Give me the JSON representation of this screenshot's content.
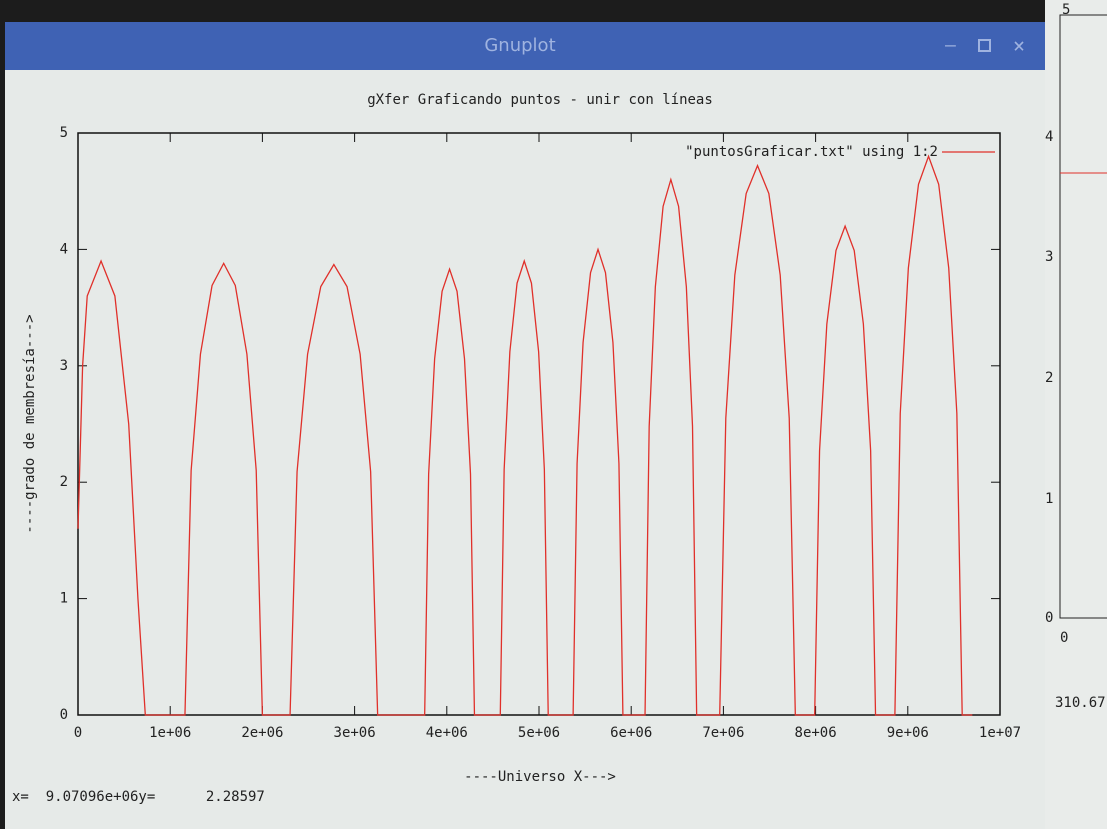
{
  "window": {
    "title": "Gnuplot"
  },
  "chart_data": {
    "type": "line",
    "title": "gXfer Graficando puntos - unir con líneas",
    "xlabel": "----Universo X--->",
    "ylabel": "----grado de membresía--->",
    "x": [
      0,
      50000,
      100000,
      250000,
      400000,
      550000,
      650000,
      730000,
      1160000,
      1227000,
      1328000,
      1454000,
      1580000,
      1706000,
      1832000,
      1933000,
      2000000,
      2300000,
      2376000,
      2490000,
      2633000,
      2775000,
      2918000,
      3060000,
      3174000,
      3250000,
      3760000,
      3803000,
      3868000,
      3949000,
      4030000,
      4111000,
      4192000,
      4257000,
      4300000,
      4580000,
      4622000,
      4684000,
      4762000,
      4840000,
      4918000,
      4996000,
      5058000,
      5100000,
      5370000,
      5413000,
      5478000,
      5559000,
      5640000,
      5721000,
      5802000,
      5867000,
      5910000,
      6150000,
      6195000,
      6262000,
      6346000,
      6430000,
      6514000,
      6598000,
      6665000,
      6710000,
      6960000,
      7026000,
      7124000,
      7247000,
      7370000,
      7493000,
      7616000,
      7714000,
      7780000,
      7990000,
      8043000,
      8122000,
      8221000,
      8320000,
      8419000,
      8518000,
      8597000,
      8650000,
      8860000,
      8918000,
      9006000,
      9116000,
      9225000,
      9335000,
      9444000,
      9532000,
      9590000,
      9700000
    ],
    "series": [
      {
        "name": "\"puntosGraficar.txt\" using 1:2",
        "color": "#e0302a",
        "values": [
          1.6,
          3.0,
          3.6,
          3.9,
          3.6,
          2.5,
          1.0,
          0,
          0,
          2.1,
          3.1,
          3.69,
          3.88,
          3.69,
          3.1,
          2.1,
          0,
          0,
          2.09,
          3.1,
          3.68,
          3.87,
          3.68,
          3.1,
          2.09,
          0,
          0,
          2.07,
          3.06,
          3.64,
          3.83,
          3.64,
          3.06,
          2.07,
          0,
          0,
          2.11,
          3.12,
          3.71,
          3.9,
          3.71,
          3.12,
          2.11,
          0,
          0,
          2.16,
          3.2,
          3.8,
          4.0,
          3.8,
          3.2,
          2.16,
          0,
          0,
          2.48,
          3.68,
          4.37,
          4.6,
          4.37,
          3.68,
          2.48,
          0,
          0,
          2.55,
          3.78,
          4.48,
          4.72,
          4.48,
          3.78,
          2.55,
          0,
          0,
          2.27,
          3.36,
          3.99,
          4.2,
          3.99,
          3.36,
          2.27,
          0,
          0,
          2.59,
          3.84,
          4.56,
          4.8,
          4.56,
          3.84,
          2.59,
          0,
          0
        ]
      }
    ],
    "xlim": [
      0,
      10000000
    ],
    "xticks": [
      0,
      {
        "value": 1000000,
        "label": "1e+06"
      },
      {
        "value": 2000000,
        "label": "2e+06"
      },
      {
        "value": 3000000,
        "label": "3e+06"
      },
      {
        "value": 4000000,
        "label": "4e+06"
      },
      {
        "value": 5000000,
        "label": "5e+06"
      },
      {
        "value": 6000000,
        "label": "6e+06"
      },
      {
        "value": 7000000,
        "label": "7e+06"
      },
      {
        "value": 8000000,
        "label": "8e+06"
      },
      {
        "value": 9000000,
        "label": "9e+06"
      },
      {
        "value": 10000000,
        "label": "1e+07"
      }
    ],
    "ylim": [
      0,
      5
    ],
    "yticks": [
      0,
      1,
      2,
      3,
      4,
      5
    ],
    "grid": false,
    "legend": "top-right"
  },
  "status_bar": {
    "text": "x=  9.07096e+06y=      2.28597"
  },
  "background_window": {
    "ytick_labels": [
      "5",
      "4",
      "3",
      "2",
      "1",
      "0"
    ],
    "xtick_label": "0",
    "readout": "310.67"
  }
}
